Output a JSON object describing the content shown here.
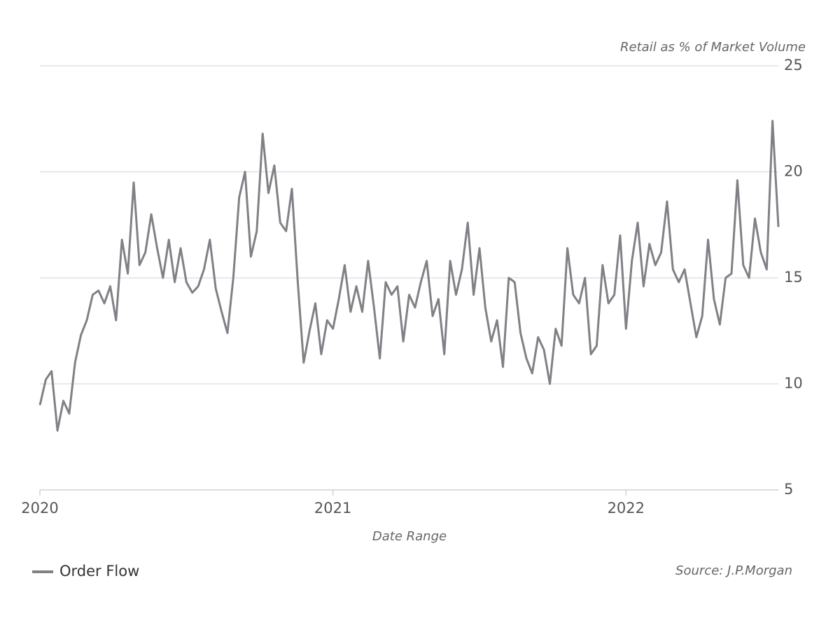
{
  "chart_data": {
    "type": "line",
    "y_label": "Retail as % of Market Volume",
    "x_label": "Date Range",
    "source": "Source: J.P.Morgan",
    "x": [
      2020,
      2020.02,
      2020.04,
      2020.06,
      2020.08,
      2020.1,
      2020.12,
      2020.14,
      2020.16,
      2020.18,
      2020.2,
      2020.22,
      2020.24,
      2020.26,
      2020.28,
      2020.3,
      2020.32,
      2020.34,
      2020.36,
      2020.38,
      2020.4,
      2020.42,
      2020.44,
      2020.46,
      2020.48,
      2020.5,
      2020.52,
      2020.54,
      2020.56,
      2020.58,
      2020.6,
      2020.62,
      2020.64,
      2020.66,
      2020.68,
      2020.7,
      2020.72,
      2020.74,
      2020.76,
      2020.78,
      2020.8,
      2020.82,
      2020.84,
      2020.86,
      2020.88,
      2020.9,
      2020.92,
      2020.94,
      2020.96,
      2020.98,
      2021,
      2021.02,
      2021.04,
      2021.06,
      2021.08,
      2021.1,
      2021.12,
      2021.14,
      2021.16,
      2021.18,
      2021.2,
      2021.22,
      2021.24,
      2021.26,
      2021.28,
      2021.3,
      2021.32,
      2021.34,
      2021.36,
      2021.38,
      2021.4,
      2021.42,
      2021.44,
      2021.46,
      2021.48,
      2021.5,
      2021.52,
      2021.54,
      2021.56,
      2021.58,
      2021.6,
      2021.62,
      2021.64,
      2021.66,
      2021.68,
      2021.7,
      2021.72,
      2021.74,
      2021.76,
      2021.78,
      2021.8,
      2021.82,
      2021.84,
      2021.86,
      2021.88,
      2021.9,
      2021.92,
      2021.94,
      2021.96,
      2021.98,
      2022,
      2022.02,
      2022.04,
      2022.06,
      2022.08,
      2022.1,
      2022.12,
      2022.14,
      2022.16,
      2022.18,
      2022.2,
      2022.22,
      2022.24,
      2022.26,
      2022.28,
      2022.3,
      2022.32,
      2022.34,
      2022.36,
      2022.38,
      2022.4,
      2022.42,
      2022.44,
      2022.46,
      2022.48,
      2022.5,
      2022.52
    ],
    "series": [
      {
        "name": "Order Flow",
        "color": "#808086",
        "values": [
          9.0,
          10.2,
          10.6,
          7.8,
          9.2,
          8.6,
          11.0,
          12.3,
          13.0,
          14.2,
          14.4,
          13.8,
          14.6,
          13.0,
          16.8,
          15.2,
          19.5,
          15.6,
          16.2,
          18.0,
          16.4,
          15.0,
          16.8,
          14.8,
          16.4,
          14.8,
          14.3,
          14.6,
          15.4,
          16.8,
          14.5,
          13.4,
          12.4,
          15.0,
          18.8,
          20.0,
          16.0,
          17.2,
          21.8,
          19.0,
          20.3,
          17.6,
          17.2,
          19.2,
          14.8,
          11.0,
          12.5,
          13.8,
          11.4,
          13.0,
          12.6,
          14.0,
          15.6,
          13.4,
          14.6,
          13.4,
          15.8,
          13.6,
          11.2,
          14.8,
          14.2,
          14.6,
          12.0,
          14.2,
          13.6,
          14.8,
          15.8,
          13.2,
          14.0,
          11.4,
          15.8,
          14.2,
          15.4,
          17.6,
          14.2,
          16.4,
          13.6,
          12.0,
          13.0,
          10.8,
          15.0,
          14.8,
          12.4,
          11.2,
          10.5,
          12.2,
          11.6,
          10.0,
          12.6,
          11.8,
          16.4,
          14.2,
          13.8,
          15.0,
          11.4,
          11.8,
          15.6,
          13.8,
          14.2,
          17.0,
          12.6,
          15.8,
          17.6,
          14.6,
          16.6,
          15.6,
          16.2,
          18.6,
          15.4,
          14.8,
          15.4,
          13.8,
          12.2,
          13.2,
          16.8,
          14.0,
          12.8,
          15.0,
          15.2,
          19.6,
          15.6,
          15.0,
          17.8,
          16.2,
          15.4,
          22.4,
          17.4
        ]
      }
    ],
    "xlim": [
      2020,
      2022.52
    ],
    "xticks": [
      2020,
      2021,
      2022
    ],
    "ylim": [
      5,
      25
    ],
    "yticks": [
      5,
      10,
      15,
      20,
      25
    ],
    "grid": true
  }
}
